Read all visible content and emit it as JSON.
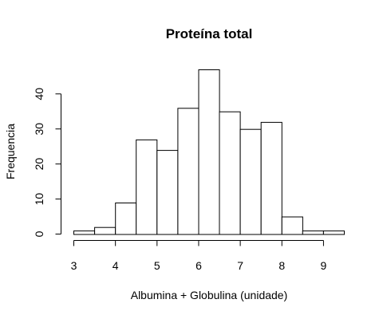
{
  "chart_data": {
    "type": "bar",
    "subtype": "histogram",
    "title": "Proteína total",
    "xlabel": "Albumina + Globulina (unidade)",
    "ylabel": "Frequencia",
    "bin_edges": [
      3,
      3.5,
      4,
      4.5,
      5,
      5.5,
      6,
      6.5,
      7,
      7.5,
      8,
      8.5,
      9,
      9.5
    ],
    "values": [
      1,
      2,
      9,
      27,
      24,
      36,
      47,
      35,
      30,
      32,
      5,
      1,
      1
    ],
    "x_ticks": [
      "3",
      "4",
      "5",
      "6",
      "7",
      "8",
      "9"
    ],
    "y_ticks": [
      "0",
      "10",
      "20",
      "30",
      "40"
    ],
    "xlim": [
      3,
      9.5
    ],
    "ylim": [
      0,
      47
    ],
    "grid": false,
    "bar_fill": "#ffffff",
    "bar_stroke": "#000000"
  }
}
